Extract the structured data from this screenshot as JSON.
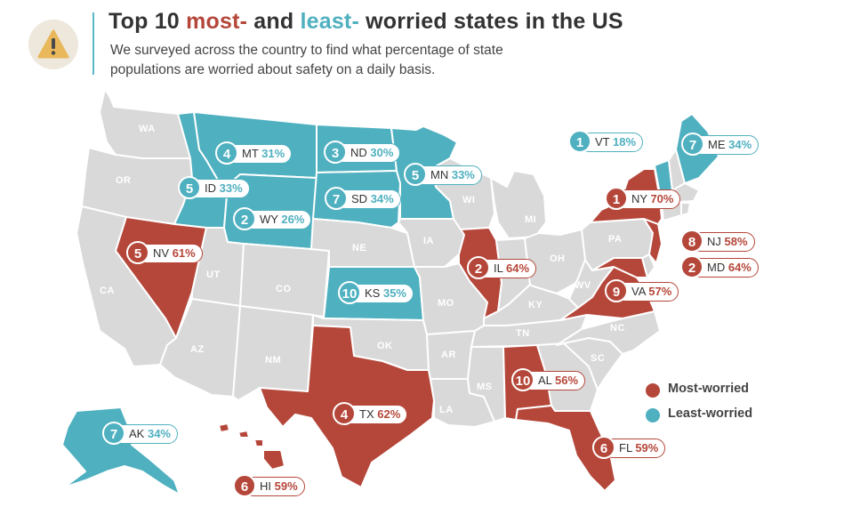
{
  "header": {
    "title_part1": "Top 10 ",
    "title_most": "most-",
    "title_part2": " and ",
    "title_least": "least-",
    "title_part3": " worried states in the US",
    "subtitle": "We surveyed across the country to find what percentage of state populations are worried about safety on a daily basis.",
    "icon": "warning-icon"
  },
  "colors": {
    "most_worried": "#b5473a",
    "least_worried": "#4fb0c0",
    "neutral": "#d9d9d9"
  },
  "map_labels": [
    "WA",
    "OR",
    "CA",
    "UT",
    "CO",
    "AZ",
    "NM",
    "NE",
    "IA",
    "WI",
    "MI",
    "OK",
    "MO",
    "AR",
    "MS",
    "LA",
    "TN",
    "KY",
    "OH",
    "PA",
    "WV",
    "NC",
    "SC"
  ],
  "legend": {
    "most_label": "Most-worried",
    "least_label": "Least-worried"
  },
  "most_worried": [
    {
      "rank": "1",
      "state": "NY",
      "pct": "70%"
    },
    {
      "rank": "2",
      "state": "IL",
      "pct": "64%"
    },
    {
      "rank": "2",
      "state": "MD",
      "pct": "64%"
    },
    {
      "rank": "4",
      "state": "TX",
      "pct": "62%"
    },
    {
      "rank": "5",
      "state": "NV",
      "pct": "61%"
    },
    {
      "rank": "6",
      "state": "FL",
      "pct": "59%"
    },
    {
      "rank": "6",
      "state": "HI",
      "pct": "59%"
    },
    {
      "rank": "8",
      "state": "NJ",
      "pct": "58%"
    },
    {
      "rank": "9",
      "state": "VA",
      "pct": "57%"
    },
    {
      "rank": "10",
      "state": "AL",
      "pct": "56%"
    }
  ],
  "least_worried": [
    {
      "rank": "1",
      "state": "VT",
      "pct": "18%"
    },
    {
      "rank": "2",
      "state": "WY",
      "pct": "26%"
    },
    {
      "rank": "3",
      "state": "ND",
      "pct": "30%"
    },
    {
      "rank": "4",
      "state": "MT",
      "pct": "31%"
    },
    {
      "rank": "5",
      "state": "ID",
      "pct": "33%"
    },
    {
      "rank": "5",
      "state": "MN",
      "pct": "33%"
    },
    {
      "rank": "7",
      "state": "SD",
      "pct": "34%"
    },
    {
      "rank": "7",
      "state": "ME",
      "pct": "34%"
    },
    {
      "rank": "7",
      "state": "AK",
      "pct": "34%"
    },
    {
      "rank": "10",
      "state": "KS",
      "pct": "35%"
    }
  ]
}
